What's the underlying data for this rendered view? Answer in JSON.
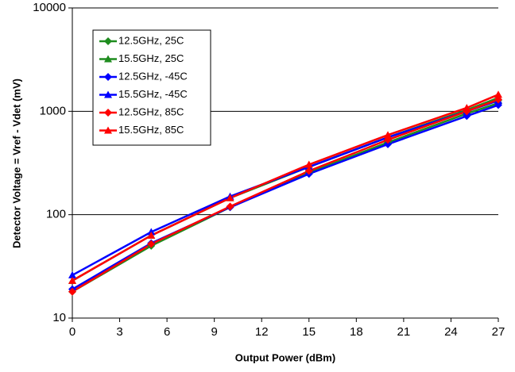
{
  "chart_data": {
    "type": "line",
    "x": [
      0,
      5,
      10,
      15,
      20,
      25,
      27
    ],
    "series": [
      {
        "name": "12.5GHz, 25C",
        "color": "#1e8c1e",
        "marker": "diamond",
        "values": [
          18,
          50,
          118,
          255,
          500,
          950,
          1200
        ]
      },
      {
        "name": "15.5GHz, 25C",
        "color": "#1e8c1e",
        "marker": "triangle",
        "values": [
          23,
          63,
          145,
          290,
          560,
          1030,
          1350
        ]
      },
      {
        "name": "12.5GHz, -45C",
        "color": "#0000ff",
        "marker": "diamond",
        "values": [
          19,
          53,
          118,
          248,
          480,
          900,
          1150
        ]
      },
      {
        "name": "15.5GHz, -45C",
        "color": "#0000ff",
        "marker": "triangle",
        "values": [
          26,
          68,
          150,
          290,
          560,
          1000,
          1270
        ]
      },
      {
        "name": "12.5GHz, 85C",
        "color": "#ff0000",
        "marker": "diamond",
        "values": [
          18,
          52,
          120,
          265,
          530,
          1000,
          1300
        ]
      },
      {
        "name": "15.5GHz, 85C",
        "color": "#ff0000",
        "marker": "triangle",
        "values": [
          23,
          63,
          145,
          305,
          590,
          1080,
          1450
        ]
      }
    ],
    "xlabel": "Output Power (dBm)",
    "ylabel": "Detector Voltage = Vref - Vdet (mV)",
    "xlim": [
      0,
      27
    ],
    "xticks": [
      0,
      3,
      6,
      9,
      12,
      15,
      18,
      21,
      24,
      27
    ],
    "ylim": [
      10,
      10000
    ],
    "yticks": [
      10,
      100,
      1000,
      10000
    ],
    "log_y": true,
    "grid": true
  }
}
